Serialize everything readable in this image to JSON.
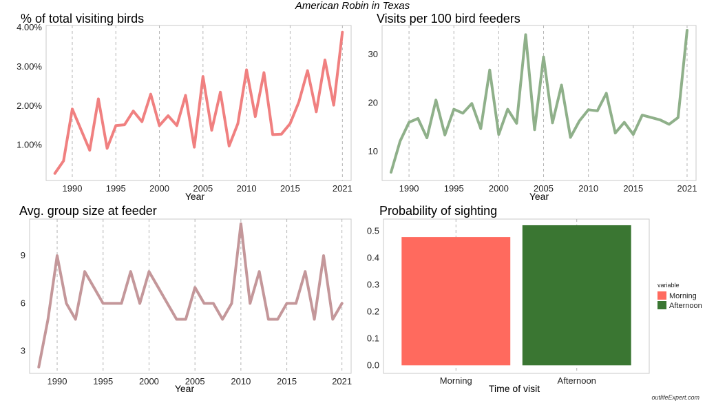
{
  "figure": {
    "title": "American Robin in Texas",
    "watermark": "outlifeExpert.com"
  },
  "colors": {
    "percent_line": "#F08080",
    "visits_line": "#8FB08A",
    "group_line": "#C4979A",
    "morning": "#FF6A5E",
    "afternoon": "#3A7632",
    "grid": "#b3b3b3",
    "frame": "#c8c8c8"
  },
  "chart_data": [
    {
      "type": "line",
      "title": "% of total visiting birds",
      "xlabel": "Year",
      "ylabel": "",
      "xlim": [
        1987,
        2022
      ],
      "ylim": [
        0.1,
        4.05
      ],
      "x_ticks": [
        1990,
        1995,
        2000,
        2005,
        2010,
        2015,
        2021
      ],
      "y_ticks": [
        1.0,
        2.0,
        3.0,
        4.0
      ],
      "y_tick_labels": [
        "1.00%",
        "2.00%",
        "3.00%",
        "4.00%"
      ],
      "grid": "vertical-dashed",
      "series": [
        {
          "x": [
            1988,
            1989,
            1990,
            1992,
            1993,
            1994,
            1995,
            1996,
            1997,
            1998,
            1999,
            2000,
            2001,
            2002,
            2003,
            2004,
            2005,
            2006,
            2007,
            2008,
            2009,
            2010,
            2011,
            2012,
            2013,
            2014,
            2015,
            2016,
            2017,
            2018,
            2019,
            2020,
            2021
          ],
          "y": [
            0.28,
            0.6,
            1.92,
            0.87,
            2.18,
            0.92,
            1.5,
            1.52,
            1.87,
            1.6,
            2.3,
            1.5,
            1.75,
            1.5,
            2.27,
            0.95,
            2.75,
            1.38,
            2.35,
            0.98,
            1.55,
            2.92,
            1.73,
            2.85,
            1.27,
            1.28,
            1.55,
            2.1,
            2.9,
            1.85,
            3.17,
            2.02,
            3.88
          ]
        }
      ]
    },
    {
      "type": "line",
      "title": "Visits per 100 bird feeders",
      "xlabel": "Year",
      "ylabel": "",
      "xlim": [
        1987,
        2022
      ],
      "ylim": [
        4,
        36
      ],
      "x_ticks": [
        1990,
        1995,
        2000,
        2005,
        2010,
        2015,
        2021
      ],
      "y_ticks": [
        10,
        20,
        30
      ],
      "y_tick_labels": [
        "10",
        "20",
        "30"
      ],
      "grid": "vertical-dashed",
      "series": [
        {
          "x": [
            1988,
            1989,
            1990,
            1991,
            1992,
            1993,
            1994,
            1995,
            1996,
            1997,
            1998,
            1999,
            2000,
            2001,
            2002,
            2003,
            2004,
            2005,
            2006,
            2007,
            2008,
            2009,
            2010,
            2011,
            2012,
            2013,
            2014,
            2015,
            2016,
            2018,
            2019,
            2020,
            2021
          ],
          "y": [
            5.7,
            12.1,
            16.0,
            16.8,
            12.8,
            20.6,
            13.4,
            18.7,
            17.9,
            19.9,
            14.7,
            26.8,
            13.5,
            18.7,
            15.8,
            34.1,
            14.5,
            29.5,
            15.9,
            23.7,
            12.9,
            16.3,
            18.6,
            18.4,
            22.0,
            13.8,
            16.0,
            13.5,
            17.5,
            16.5,
            15.6,
            17.0,
            35.0
          ]
        }
      ]
    },
    {
      "type": "line",
      "title": "Avg. group size at feeder",
      "xlabel": "Year",
      "ylabel": "",
      "xlim": [
        1987,
        2022
      ],
      "ylim": [
        1.6,
        11.3
      ],
      "x_ticks": [
        1990,
        1995,
        2000,
        2005,
        2010,
        2015,
        2021
      ],
      "y_ticks": [
        3,
        6,
        9
      ],
      "y_tick_labels": [
        "3",
        "6",
        "9"
      ],
      "grid": "vertical-dashed",
      "series": [
        {
          "x": [
            1988,
            1989,
            1990,
            1991,
            1992,
            1993,
            1994,
            1995,
            1996,
            1997,
            1998,
            1999,
            2000,
            2001,
            2002,
            2003,
            2004,
            2005,
            2006,
            2007,
            2008,
            2009,
            2010,
            2011,
            2012,
            2013,
            2014,
            2015,
            2016,
            2017,
            2018,
            2019,
            2020,
            2021
          ],
          "y": [
            2,
            5,
            9,
            6,
            5,
            8,
            7,
            6,
            6,
            6,
            8,
            6,
            8,
            7,
            6,
            5,
            5,
            7,
            6,
            6,
            5,
            6,
            11,
            6,
            8,
            5,
            5,
            6,
            6,
            8,
            5,
            9,
            5,
            6
          ]
        }
      ]
    },
    {
      "type": "bar",
      "title": "Probability of sighting",
      "xlabel": "Time of visit",
      "ylabel": "",
      "categories": [
        "Morning",
        "Afternoon"
      ],
      "values": [
        0.478,
        0.522
      ],
      "ylim": [
        -0.03,
        0.545
      ],
      "y_ticks": [
        0.0,
        0.1,
        0.2,
        0.3,
        0.4,
        0.5
      ],
      "y_tick_labels": [
        "0.0",
        "0.1",
        "0.2",
        "0.3",
        "0.4",
        "0.5"
      ],
      "grid": "vertical-dashed",
      "legend": {
        "title": "variable",
        "placement": "right",
        "entries": [
          "Morning",
          "Afternoon"
        ]
      }
    }
  ]
}
